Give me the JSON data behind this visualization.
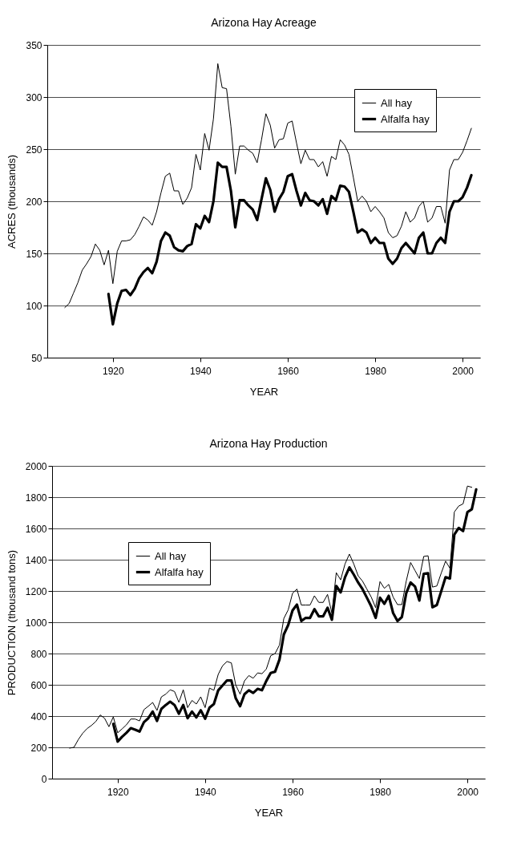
{
  "chart_data": [
    {
      "type": "line",
      "title": "Arizona Hay Acreage",
      "xlabel": "YEAR",
      "ylabel": "ACRES (thousands)",
      "xlim": [
        1905,
        2004
      ],
      "xticks": [
        1920,
        1940,
        1960,
        1980,
        2000
      ],
      "ylim": [
        50,
        350
      ],
      "yticks": [
        50,
        100,
        150,
        200,
        250,
        300,
        350
      ],
      "grid": "y",
      "legend": "top right",
      "series": [
        {
          "name": "All hay",
          "color": "#000000",
          "x": [
            1909,
            1910,
            1911,
            1912,
            1913,
            1914,
            1915,
            1916,
            1917,
            1918,
            1919,
            1920,
            1921,
            1922,
            1923,
            1924,
            1925,
            1926,
            1927,
            1928,
            1929,
            1930,
            1931,
            1932,
            1933,
            1934,
            1935,
            1936,
            1937,
            1938,
            1939,
            1940,
            1941,
            1942,
            1943,
            1944,
            1945,
            1946,
            1947,
            1948,
            1949,
            1950,
            1951,
            1952,
            1953,
            1954,
            1955,
            1956,
            1957,
            1958,
            1959,
            1960,
            1961,
            1962,
            1963,
            1964,
            1965,
            1966,
            1967,
            1968,
            1969,
            1970,
            1971,
            1972,
            1973,
            1974,
            1975,
            1976,
            1977,
            1978,
            1979,
            1980,
            1981,
            1982,
            1983,
            1984,
            1985,
            1986,
            1987,
            1988,
            1989,
            1990,
            1991,
            1992,
            1993,
            1994,
            1995,
            1996,
            1997,
            1998,
            1999,
            2000,
            2001,
            2002
          ],
          "values": [
            98,
            102,
            112,
            122,
            134,
            140,
            147,
            159,
            153,
            139,
            153,
            121,
            152,
            162,
            162,
            163,
            168,
            176,
            185,
            182,
            177,
            190,
            208,
            224,
            227,
            210,
            210,
            197,
            203,
            213,
            245,
            230,
            265,
            249,
            279,
            332,
            309,
            308,
            272,
            226,
            253,
            253,
            249,
            246,
            237,
            259,
            284,
            273,
            251,
            259,
            260,
            275,
            277,
            256,
            236,
            249,
            240,
            240,
            233,
            238,
            224,
            243,
            240,
            259,
            254,
            245,
            223,
            200,
            205,
            200,
            190,
            195,
            190,
            184,
            170,
            165,
            167,
            176,
            190,
            180,
            184,
            195,
            200,
            180,
            184,
            195,
            195,
            179,
            230,
            240,
            240,
            247,
            258,
            270
          ]
        },
        {
          "name": "Alfalfa hay",
          "color": "#000000",
          "x": [
            1919,
            1920,
            1921,
            1922,
            1923,
            1924,
            1925,
            1926,
            1927,
            1928,
            1929,
            1930,
            1931,
            1932,
            1933,
            1934,
            1935,
            1936,
            1937,
            1938,
            1939,
            1940,
            1941,
            1942,
            1943,
            1944,
            1945,
            1946,
            1947,
            1948,
            1949,
            1950,
            1951,
            1952,
            1953,
            1954,
            1955,
            1956,
            1957,
            1958,
            1959,
            1960,
            1961,
            1962,
            1963,
            1964,
            1965,
            1966,
            1967,
            1968,
            1969,
            1970,
            1971,
            1972,
            1973,
            1974,
            1975,
            1976,
            1977,
            1978,
            1979,
            1980,
            1981,
            1982,
            1983,
            1984,
            1985,
            1986,
            1987,
            1988,
            1989,
            1990,
            1991,
            1992,
            1993,
            1994,
            1995,
            1996,
            1997,
            1998,
            1999,
            2000,
            2001,
            2002
          ],
          "values": [
            111,
            82,
            102,
            114,
            115,
            110,
            116,
            126,
            132,
            136,
            131,
            142,
            162,
            170,
            167,
            156,
            153,
            152,
            157,
            159,
            178,
            174,
            186,
            180,
            200,
            237,
            233,
            233,
            210,
            175,
            201,
            201,
            196,
            192,
            182,
            202,
            222,
            211,
            190,
            202,
            209,
            224,
            226,
            210,
            196,
            208,
            201,
            200,
            196,
            202,
            188,
            205,
            201,
            215,
            214,
            209,
            190,
            170,
            173,
            170,
            160,
            165,
            160,
            160,
            145,
            140,
            145,
            155,
            160,
            155,
            150,
            165,
            170,
            150,
            150,
            160,
            165,
            160,
            190,
            200,
            200,
            204,
            213,
            225
          ]
        }
      ]
    },
    {
      "type": "line",
      "title": "Arizona Hay Production",
      "xlabel": "YEAR",
      "ylabel": "PRODUCTION (thousand tons)",
      "xlim": [
        1905,
        2004
      ],
      "xticks": [
        1920,
        1940,
        1960,
        1980,
        2000
      ],
      "ylim": [
        0,
        2000
      ],
      "yticks": [
        0,
        200,
        400,
        600,
        800,
        1000,
        1200,
        1400,
        1600,
        1800,
        2000
      ],
      "grid": "y",
      "legend": "top left",
      "series": [
        {
          "name": "All hay",
          "color": "#000000",
          "x": [
            1909,
            1910,
            1911,
            1912,
            1913,
            1914,
            1915,
            1916,
            1917,
            1918,
            1919,
            1920,
            1921,
            1922,
            1923,
            1924,
            1925,
            1926,
            1927,
            1928,
            1929,
            1930,
            1931,
            1932,
            1933,
            1934,
            1935,
            1936,
            1937,
            1938,
            1939,
            1940,
            1941,
            1942,
            1943,
            1944,
            1945,
            1946,
            1947,
            1948,
            1949,
            1950,
            1951,
            1952,
            1953,
            1954,
            1955,
            1956,
            1957,
            1958,
            1959,
            1960,
            1961,
            1962,
            1963,
            1964,
            1965,
            1966,
            1967,
            1968,
            1969,
            1970,
            1971,
            1972,
            1973,
            1974,
            1975,
            1976,
            1977,
            1978,
            1979,
            1980,
            1981,
            1982,
            1983,
            1984,
            1985,
            1986,
            1987,
            1988,
            1989,
            1990,
            1991,
            1992,
            1993,
            1994,
            1995,
            1996,
            1997,
            1998,
            1999,
            2000,
            2001
          ],
          "values": [
            195,
            200,
            250,
            290,
            320,
            340,
            365,
            407,
            386,
            332,
            395,
            293,
            318,
            344,
            381,
            381,
            369,
            441,
            463,
            487,
            436,
            523,
            540,
            568,
            557,
            488,
            568,
            454,
            500,
            477,
            523,
            454,
            579,
            565,
            667,
            722,
            749,
            740,
            599,
            540,
            625,
            659,
            642,
            676,
            671,
            701,
            786,
            800,
            854,
            1024,
            1079,
            1186,
            1212,
            1110,
            1110,
            1110,
            1169,
            1127,
            1127,
            1178,
            1059,
            1317,
            1271,
            1373,
            1436,
            1373,
            1297,
            1263,
            1212,
            1161,
            1093,
            1260,
            1217,
            1242,
            1161,
            1113,
            1113,
            1263,
            1382,
            1331,
            1280,
            1421,
            1425,
            1225,
            1232,
            1314,
            1391,
            1345,
            1705,
            1743,
            1757,
            1871,
            1863
          ]
        },
        {
          "name": "Alfalfa hay",
          "color": "#000000",
          "x": [
            1919,
            1920,
            1921,
            1922,
            1923,
            1924,
            1925,
            1926,
            1927,
            1928,
            1929,
            1930,
            1931,
            1932,
            1933,
            1934,
            1935,
            1936,
            1937,
            1938,
            1939,
            1940,
            1941,
            1942,
            1943,
            1944,
            1945,
            1946,
            1947,
            1948,
            1949,
            1950,
            1951,
            1952,
            1953,
            1954,
            1955,
            1956,
            1957,
            1958,
            1959,
            1960,
            1961,
            1962,
            1963,
            1964,
            1965,
            1966,
            1967,
            1968,
            1969,
            1970,
            1971,
            1972,
            1973,
            1974,
            1975,
            1976,
            1977,
            1978,
            1979,
            1980,
            1981,
            1982,
            1983,
            1984,
            1985,
            1986,
            1987,
            1988,
            1989,
            1990,
            1991,
            1992,
            1993,
            1994,
            1995,
            1996,
            1997,
            1998,
            1999,
            2000,
            2001,
            2002
          ],
          "values": [
            350,
            237,
            267,
            293,
            323,
            313,
            301,
            361,
            386,
            429,
            369,
            446,
            471,
            492,
            471,
            415,
            471,
            386,
            429,
            391,
            437,
            383,
            454,
            477,
            565,
            596,
            628,
            628,
            514,
            463,
            540,
            565,
            548,
            574,
            565,
            625,
            676,
            684,
            761,
            922,
            982,
            1076,
            1113,
            1008,
            1028,
            1028,
            1084,
            1038,
            1038,
            1093,
            1016,
            1232,
            1191,
            1288,
            1351,
            1305,
            1254,
            1212,
            1157,
            1101,
            1028,
            1157,
            1118,
            1169,
            1059,
            1008,
            1033,
            1186,
            1254,
            1229,
            1139,
            1310,
            1314,
            1096,
            1110,
            1198,
            1288,
            1280,
            1561,
            1603,
            1583,
            1705,
            1722,
            1850
          ]
        }
      ]
    }
  ]
}
